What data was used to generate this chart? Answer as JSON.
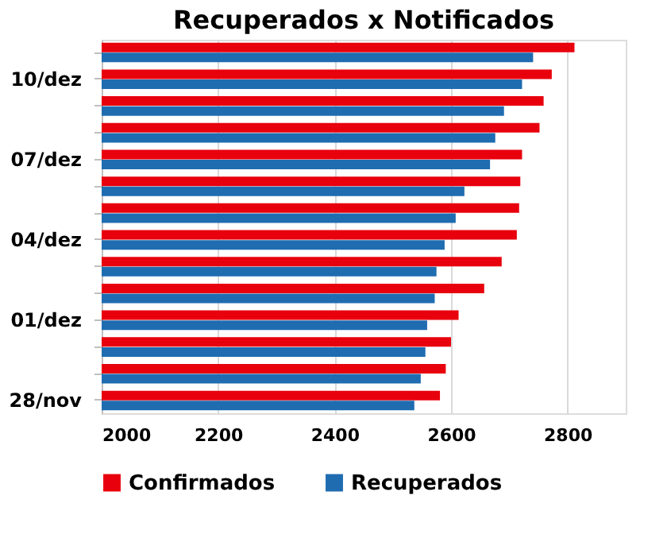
{
  "chart_data": {
    "type": "bar",
    "orientation": "horizontal",
    "title": "Recuperados x Notificados",
    "categories": [
      null,
      "10/dez",
      null,
      null,
      "07/dez",
      null,
      null,
      "04/dez",
      null,
      null,
      "01/dez",
      null,
      null,
      "28/nov"
    ],
    "series": [
      {
        "name": "Confirmados",
        "color": "#e8000d",
        "values": [
          2812,
          2773,
          2759,
          2752,
          2722,
          2719,
          2717,
          2713,
          2687,
          2657,
          2613,
          2600,
          2591,
          2581
        ]
      },
      {
        "name": "Recuperados",
        "color": "#1f6cb0",
        "values": [
          2741,
          2722,
          2691,
          2676,
          2667,
          2623,
          2608,
          2589,
          2575,
          2572,
          2559,
          2556,
          2548,
          2537
        ]
      }
    ],
    "xlim": [
      2000,
      2900
    ],
    "xticks": [
      2000,
      2200,
      2400,
      2600,
      2800
    ],
    "grid": "x",
    "legend": "bottom"
  }
}
